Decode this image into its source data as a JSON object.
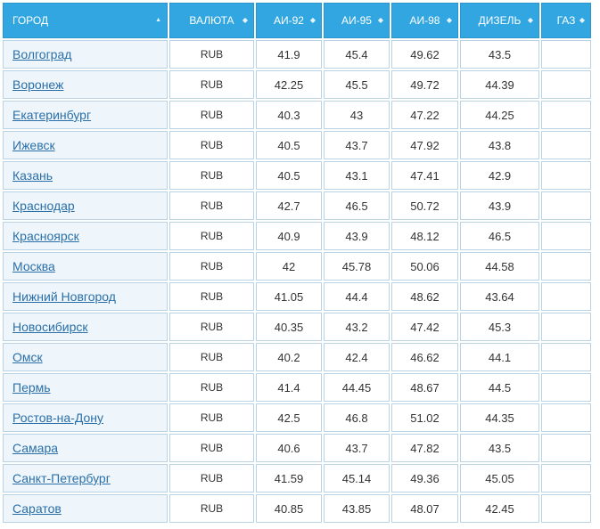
{
  "columns": [
    {
      "key": "city",
      "label": "ГОРОД",
      "sort": "asc-active"
    },
    {
      "key": "currency",
      "label": "ВАЛЮТА",
      "sort": "both"
    },
    {
      "key": "ai92",
      "label": "АИ-92",
      "sort": "both"
    },
    {
      "key": "ai95",
      "label": "АИ-95",
      "sort": "both"
    },
    {
      "key": "ai98",
      "label": "АИ-98",
      "sort": "both"
    },
    {
      "key": "diesel",
      "label": "ДИЗЕЛЬ",
      "sort": "both"
    },
    {
      "key": "gas",
      "label": "ГАЗ",
      "sort": "both"
    }
  ],
  "rows": [
    {
      "city": "Волгоград",
      "currency": "RUB",
      "ai92": "41.9",
      "ai95": "45.4",
      "ai98": "49.62",
      "diesel": "43.5",
      "gas": ""
    },
    {
      "city": "Воронеж",
      "currency": "RUB",
      "ai92": "42.25",
      "ai95": "45.5",
      "ai98": "49.72",
      "diesel": "44.39",
      "gas": ""
    },
    {
      "city": "Екатеринбург",
      "currency": "RUB",
      "ai92": "40.3",
      "ai95": "43",
      "ai98": "47.22",
      "diesel": "44.25",
      "gas": ""
    },
    {
      "city": "Ижевск",
      "currency": "RUB",
      "ai92": "40.5",
      "ai95": "43.7",
      "ai98": "47.92",
      "diesel": "43.8",
      "gas": ""
    },
    {
      "city": "Казань",
      "currency": "RUB",
      "ai92": "40.5",
      "ai95": "43.1",
      "ai98": "47.41",
      "diesel": "42.9",
      "gas": ""
    },
    {
      "city": "Краснодар",
      "currency": "RUB",
      "ai92": "42.7",
      "ai95": "46.5",
      "ai98": "50.72",
      "diesel": "43.9",
      "gas": ""
    },
    {
      "city": "Красноярск",
      "currency": "RUB",
      "ai92": "40.9",
      "ai95": "43.9",
      "ai98": "48.12",
      "diesel": "46.5",
      "gas": ""
    },
    {
      "city": "Москва",
      "currency": "RUB",
      "ai92": "42",
      "ai95": "45.78",
      "ai98": "50.06",
      "diesel": "44.58",
      "gas": ""
    },
    {
      "city": "Нижний Новгород",
      "currency": "RUB",
      "ai92": "41.05",
      "ai95": "44.4",
      "ai98": "48.62",
      "diesel": "43.64",
      "gas": ""
    },
    {
      "city": "Новосибирск",
      "currency": "RUB",
      "ai92": "40.35",
      "ai95": "43.2",
      "ai98": "47.42",
      "diesel": "45.3",
      "gas": ""
    },
    {
      "city": "Омск",
      "currency": "RUB",
      "ai92": "40.2",
      "ai95": "42.4",
      "ai98": "46.62",
      "diesel": "44.1",
      "gas": ""
    },
    {
      "city": "Пермь",
      "currency": "RUB",
      "ai92": "41.4",
      "ai95": "44.45",
      "ai98": "48.67",
      "diesel": "44.5",
      "gas": ""
    },
    {
      "city": "Ростов-на-Дону",
      "currency": "RUB",
      "ai92": "42.5",
      "ai95": "46.8",
      "ai98": "51.02",
      "diesel": "44.35",
      "gas": ""
    },
    {
      "city": "Самара",
      "currency": "RUB",
      "ai92": "40.6",
      "ai95": "43.7",
      "ai98": "47.82",
      "diesel": "43.5",
      "gas": ""
    },
    {
      "city": "Санкт-Петербург",
      "currency": "RUB",
      "ai92": "41.59",
      "ai95": "45.14",
      "ai98": "49.36",
      "diesel": "45.05",
      "gas": ""
    },
    {
      "city": "Саратов",
      "currency": "RUB",
      "ai92": "40.85",
      "ai95": "43.85",
      "ai98": "48.07",
      "diesel": "42.45",
      "gas": ""
    }
  ],
  "colors": {
    "header_bg": "#31a6e0",
    "header_text": "#ffffff",
    "city_cell_bg": "#eef6fc",
    "link": "#2a6fa8",
    "cell_border": "#b9d3e4"
  },
  "icons": {
    "sort_active": "sort-ascending-icon",
    "sort_both": "sort-both-icon"
  }
}
